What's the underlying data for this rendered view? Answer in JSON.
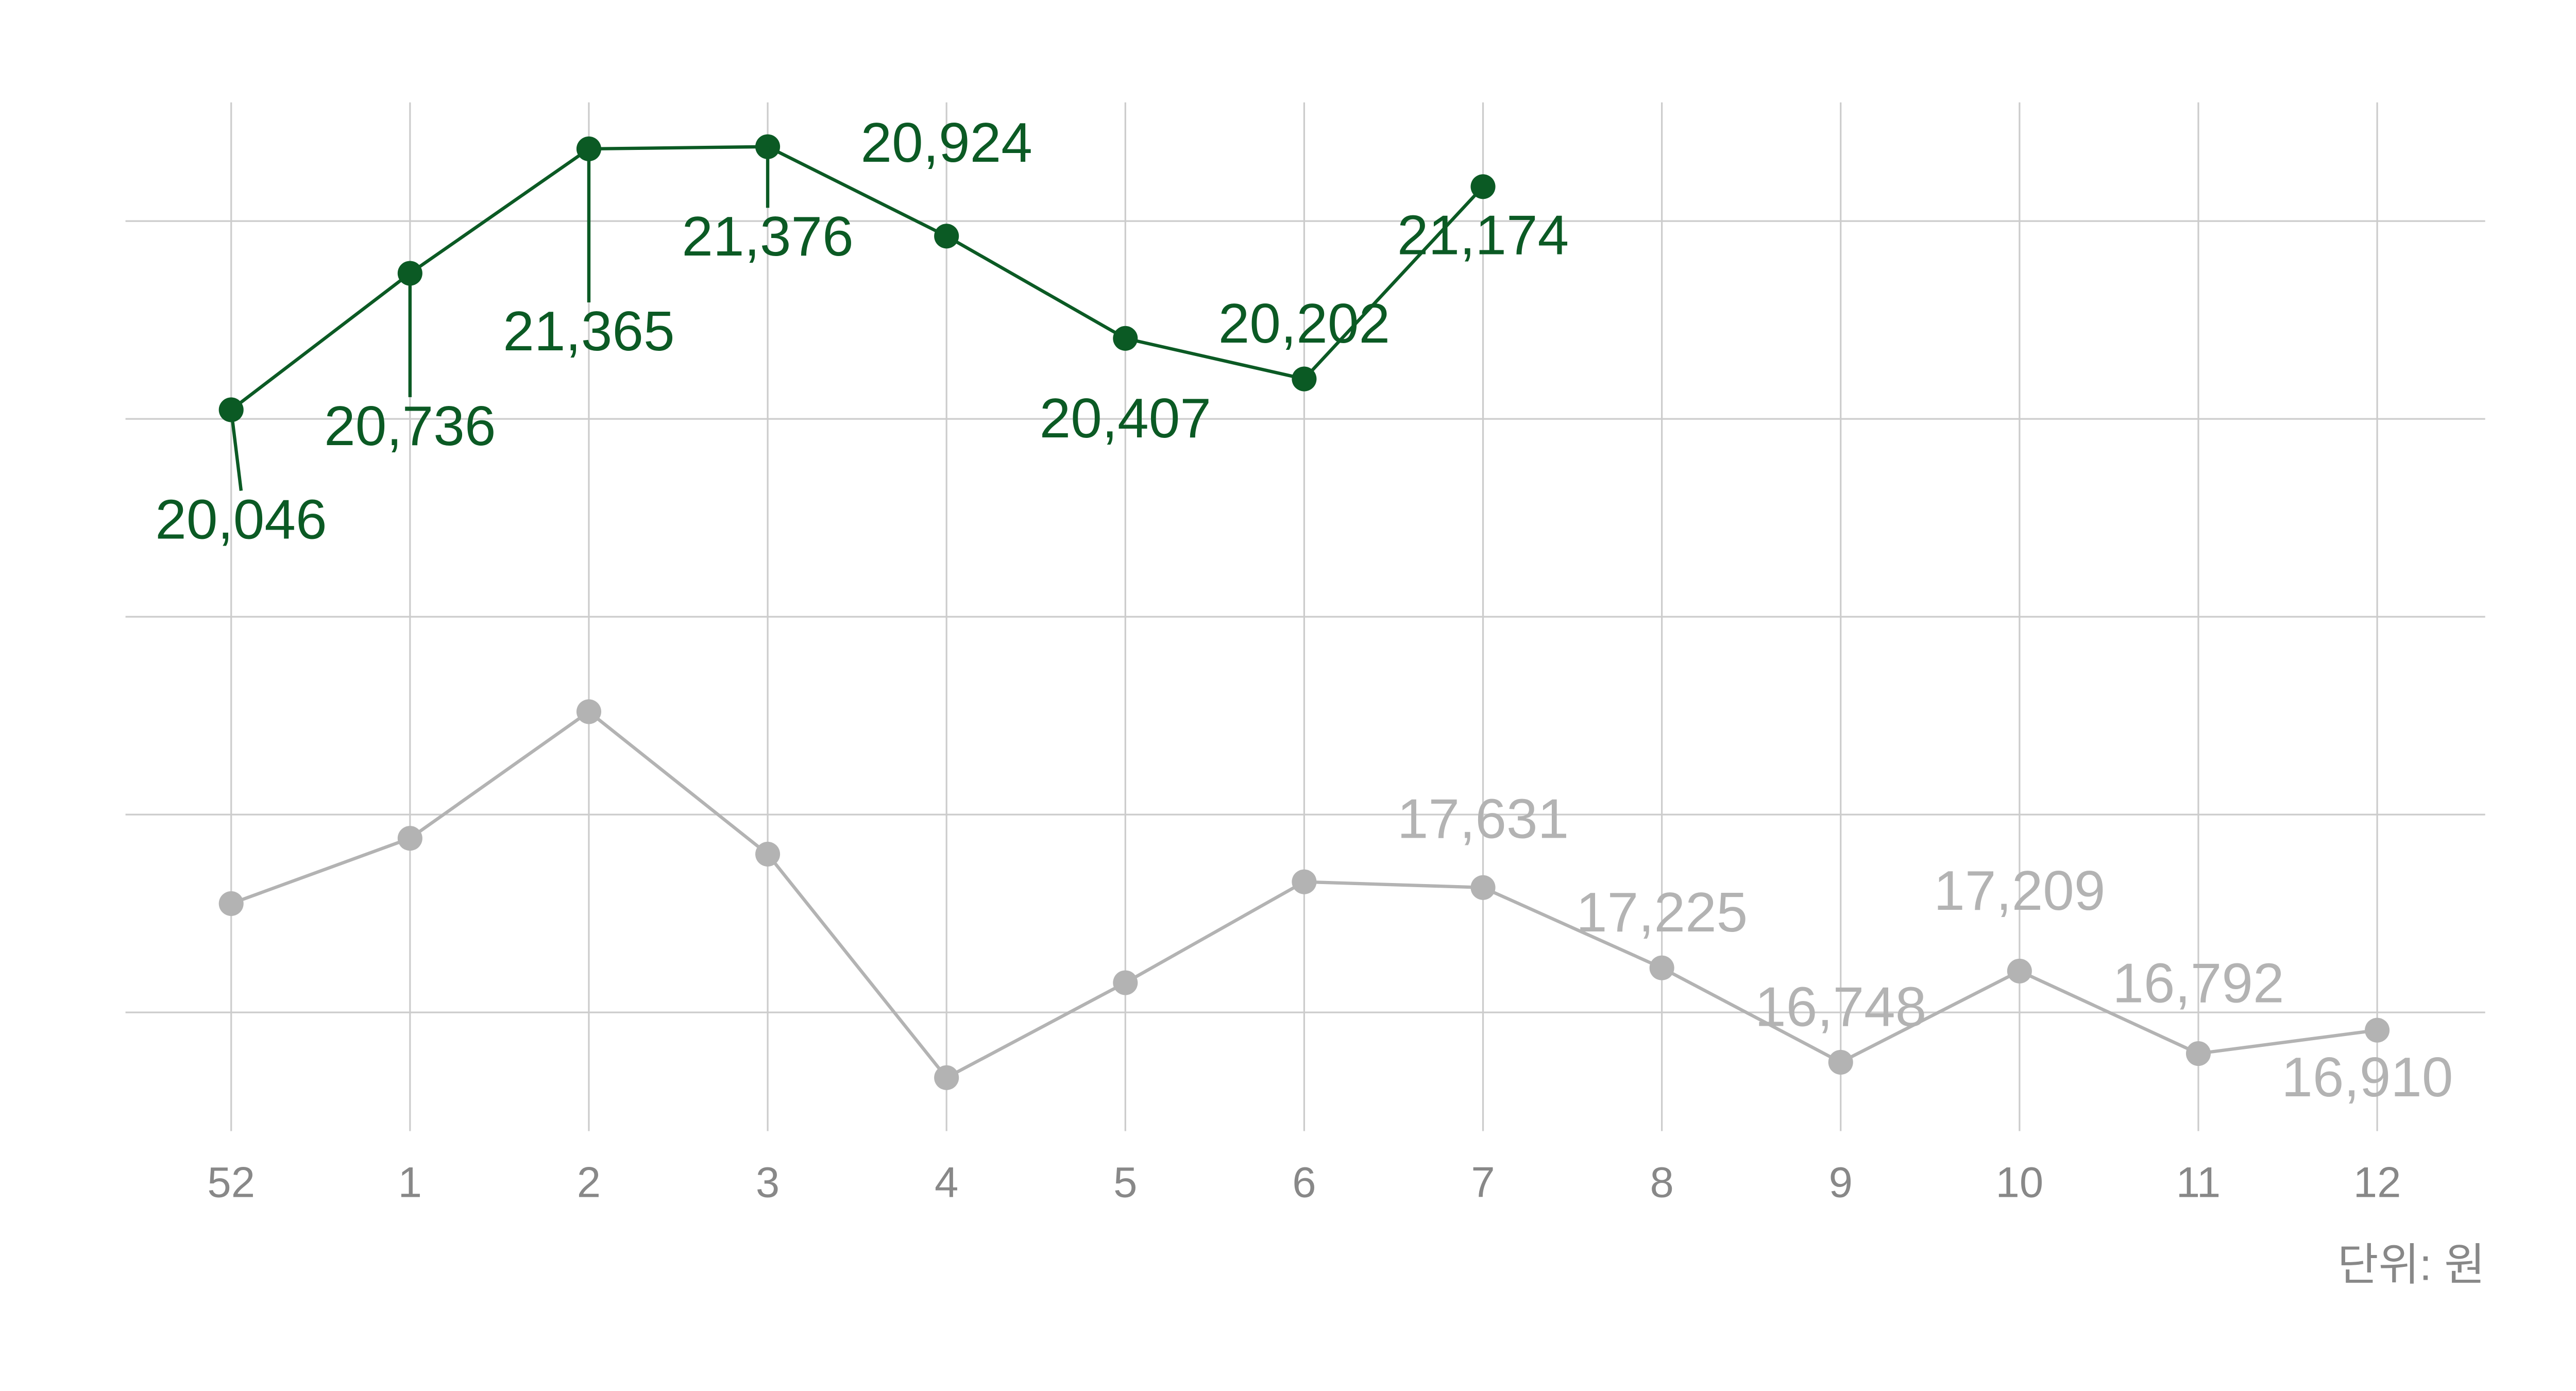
{
  "chart_data": {
    "type": "line",
    "categories": [
      "52",
      "1",
      "2",
      "3",
      "4",
      "5",
      "6",
      "7",
      "8",
      "9",
      "10",
      "11",
      "12"
    ],
    "series": [
      {
        "color": "#0b5a24",
        "values": [
          20046,
          20736,
          21365,
          21376,
          20924,
          20407,
          20202,
          21174,
          null,
          null,
          null,
          null,
          null
        ],
        "value_labels": [
          "20,046",
          "20,736",
          "21,365",
          "21,376",
          "20,924",
          "20,407",
          "20,202",
          "21,174",
          null,
          null,
          null,
          null,
          null
        ]
      },
      {
        "color": "#b3b3b3",
        "values": [
          17550,
          17880,
          18520,
          17800,
          16670,
          17150,
          17660,
          17631,
          17225,
          16748,
          17209,
          16792,
          16910
        ],
        "value_labels": [
          null,
          null,
          null,
          null,
          null,
          null,
          null,
          "17,631",
          "17,225",
          "16,748",
          "17,209",
          "16,792",
          "16,910"
        ]
      }
    ],
    "ylim": [
      16400,
      21600
    ],
    "yticks": [
      17000,
      18000,
      19000,
      20000,
      21000
    ],
    "grid": true,
    "unit_label": "단위: 원"
  }
}
